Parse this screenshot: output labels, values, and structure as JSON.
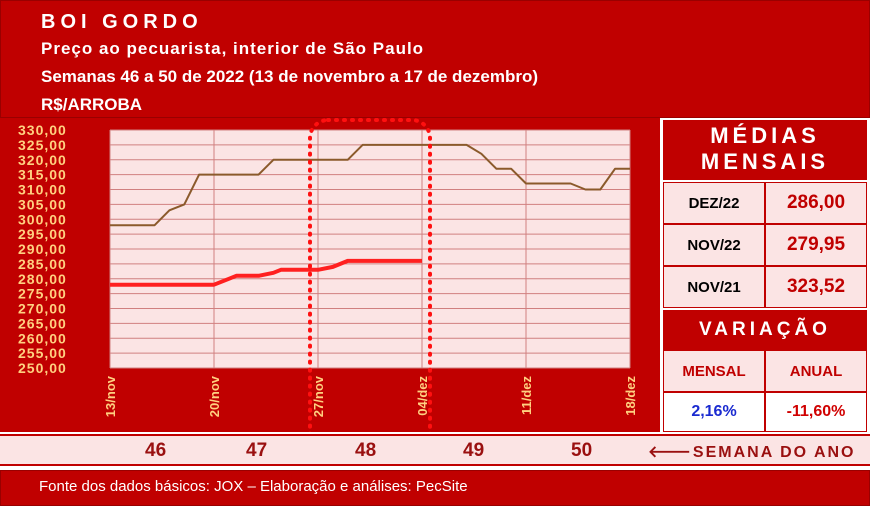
{
  "header": {
    "title": "BOI GORDO",
    "subtitle": "Preço ao pecuarista, interior de São Paulo",
    "period": "Semanas 46 a 50 de 2022 (13 de novembro a 17 de dezembro)",
    "unit": "R$/ARROBA"
  },
  "medias": {
    "title_line1": "MÉDIAS",
    "title_line2": "MENSAIS",
    "rows": [
      {
        "label": "DEZ/22",
        "value": "286,00"
      },
      {
        "label": "NOV/22",
        "value": "279,95"
      },
      {
        "label": "NOV/21",
        "value": "323,52"
      }
    ]
  },
  "variacao": {
    "title": "VARIAÇÃO",
    "mensal_label": "MENSAL",
    "anual_label": "ANUAL",
    "mensal_value": "2,16%",
    "anual_value": "-11,60%",
    "mensal_color": "#1a2ad0",
    "anual_color": "#d00000"
  },
  "weeks": {
    "numbers": [
      "46",
      "47",
      "48",
      "49",
      "50"
    ],
    "label": "SEMANA DO ANO",
    "arrow": "🡐"
  },
  "footer": "Fonte dos dados básicos: JOX – Elaboração e análises: PecSite",
  "colors": {
    "brand_red": "#c00000",
    "panel_pink": "#fbe4e4",
    "series_2022": "#ff2020",
    "series_2021": "#8b5a2b",
    "tick_label": "#ffd080"
  },
  "chart_data": {
    "type": "line",
    "ylim": [
      250,
      330
    ],
    "yticks": [
      "250,00",
      "255,00",
      "260,00",
      "265,00",
      "270,00",
      "275,00",
      "280,00",
      "285,00",
      "290,00",
      "295,00",
      "300,00",
      "305,00",
      "310,00",
      "315,00",
      "320,00",
      "325,00",
      "330,00"
    ],
    "xlim": [
      0,
      35
    ],
    "xticks": [
      {
        "label": "13/nov",
        "x": 0
      },
      {
        "label": "20/nov",
        "x": 7
      },
      {
        "label": "27/nov",
        "x": 14
      },
      {
        "label": "04/dez",
        "x": 21
      },
      {
        "label": "11/dez",
        "x": 28
      },
      {
        "label": "18/dez",
        "x": 35
      }
    ],
    "highlight_range": [
      14,
      21
    ],
    "series": [
      {
        "color": "#ff2020",
        "width": 4,
        "points": [
          [
            0,
            278
          ],
          [
            7,
            278
          ],
          [
            8,
            280
          ],
          [
            8.5,
            281
          ],
          [
            10,
            281
          ],
          [
            11,
            282
          ],
          [
            11.5,
            283
          ],
          [
            14,
            283
          ],
          [
            15,
            284
          ],
          [
            16,
            286
          ],
          [
            21,
            286
          ]
        ]
      },
      {
        "color": "#8b5a2b",
        "width": 2,
        "points": [
          [
            0,
            298
          ],
          [
            1,
            298
          ],
          [
            2,
            298
          ],
          [
            3,
            298
          ],
          [
            4,
            303
          ],
          [
            5,
            305
          ],
          [
            6,
            315
          ],
          [
            7,
            315
          ],
          [
            8,
            315
          ],
          [
            9,
            315
          ],
          [
            10,
            315
          ],
          [
            11,
            320
          ],
          [
            12,
            320
          ],
          [
            13,
            320
          ],
          [
            14,
            320
          ],
          [
            15,
            320
          ],
          [
            16,
            320
          ],
          [
            17,
            325
          ],
          [
            18,
            325
          ],
          [
            19,
            325
          ],
          [
            20,
            325
          ],
          [
            21,
            325
          ],
          [
            22,
            325
          ],
          [
            23,
            325
          ],
          [
            24,
            325
          ],
          [
            25,
            322
          ],
          [
            26,
            317
          ],
          [
            27,
            317
          ],
          [
            28,
            312
          ],
          [
            29,
            312
          ],
          [
            30,
            312
          ],
          [
            31,
            312
          ],
          [
            32,
            310
          ],
          [
            33,
            310
          ],
          [
            34,
            317
          ],
          [
            35,
            317
          ]
        ]
      }
    ]
  }
}
